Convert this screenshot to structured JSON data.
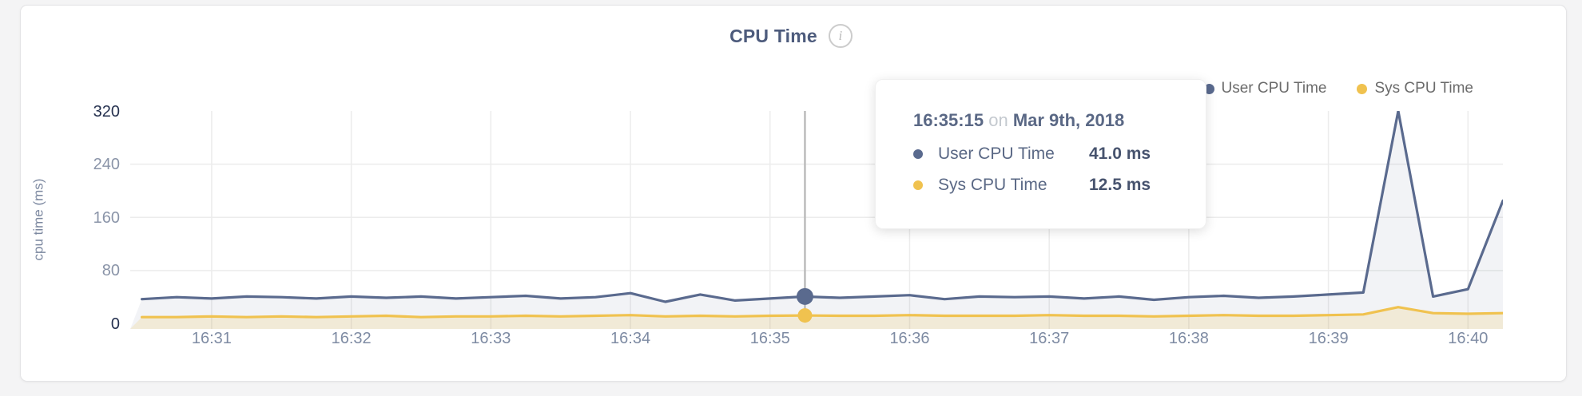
{
  "header": {
    "title": "CPU Time",
    "info_icon": "i"
  },
  "legend": {
    "items": [
      {
        "label": "User CPU Time",
        "color": "#5a6a8e"
      },
      {
        "label": "Sys CPU Time",
        "color": "#f0c24f"
      }
    ]
  },
  "tooltip": {
    "time": "16:35:15",
    "connector": "on",
    "date": "Mar 9th, 2018",
    "rows": [
      {
        "label": "User CPU Time",
        "value": "41.0 ms",
        "color": "#5a6a8e"
      },
      {
        "label": "Sys CPU Time",
        "value": "12.5 ms",
        "color": "#f0c24f"
      }
    ]
  },
  "chart_data": {
    "type": "line",
    "title": "CPU Time",
    "xlabel": "",
    "ylabel": "cpu time (ms)",
    "ylim": [
      0,
      320
    ],
    "yticks": [
      0,
      80,
      160,
      240,
      320
    ],
    "xticks": [
      "16:31",
      "16:32",
      "16:33",
      "16:34",
      "16:35",
      "16:36",
      "16:37",
      "16:38",
      "16:39",
      "16:40"
    ],
    "x_range": [
      "16:30:25",
      "16:40:15"
    ],
    "grid": true,
    "legend_position": "top-right",
    "x": [
      "16:30:30",
      "16:30:45",
      "16:31:00",
      "16:31:15",
      "16:31:30",
      "16:31:45",
      "16:32:00",
      "16:32:15",
      "16:32:30",
      "16:32:45",
      "16:33:00",
      "16:33:15",
      "16:33:30",
      "16:33:45",
      "16:34:00",
      "16:34:15",
      "16:34:30",
      "16:34:45",
      "16:35:00",
      "16:35:15",
      "16:35:30",
      "16:35:45",
      "16:36:00",
      "16:36:15",
      "16:36:30",
      "16:36:45",
      "16:37:00",
      "16:37:15",
      "16:37:30",
      "16:37:45",
      "16:38:00",
      "16:38:15",
      "16:38:30",
      "16:38:45",
      "16:39:00",
      "16:39:15",
      "16:39:30",
      "16:39:45",
      "16:40:00",
      "16:40:15"
    ],
    "series": [
      {
        "name": "User CPU Time",
        "color": "#5a6a8e",
        "fill": "rgba(108,122,153,0.09)",
        "values": [
          37,
          40,
          38,
          41,
          40,
          38,
          41,
          39,
          41,
          38,
          40,
          42,
          38,
          40,
          46,
          33,
          44,
          35,
          38,
          41,
          39,
          41,
          43,
          37,
          41,
          40,
          41,
          38,
          41,
          36,
          40,
          42,
          39,
          41,
          44,
          47,
          320,
          41,
          52,
          185
        ]
      },
      {
        "name": "Sys CPU Time",
        "color": "#f0c24f",
        "fill": "rgba(240,194,79,0.18)",
        "values": [
          10,
          10,
          11,
          10,
          11,
          10,
          11,
          12,
          10,
          11,
          11,
          12,
          11,
          12,
          13,
          11,
          12,
          11,
          12,
          12.5,
          12,
          12,
          13,
          12,
          12,
          12,
          13,
          12,
          12,
          11,
          12,
          13,
          12,
          12,
          13,
          14,
          25,
          16,
          15,
          16
        ]
      }
    ],
    "hover": {
      "time": "16:35:15",
      "user_ms": 41.0,
      "sys_ms": 12.5
    }
  }
}
